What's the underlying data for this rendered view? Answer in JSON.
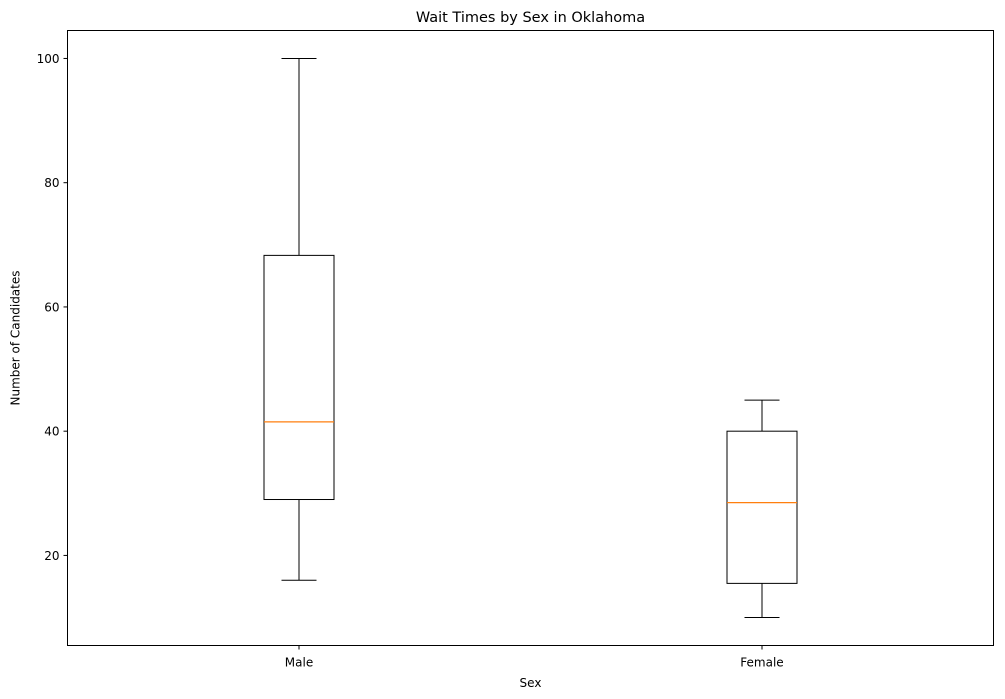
{
  "chart_data": {
    "type": "box",
    "title": "Wait Times by Sex in Oklahoma",
    "xlabel": "Sex",
    "ylabel": "Number of Candidates",
    "categories": [
      "Male",
      "Female"
    ],
    "boxes": [
      {
        "name": "Male",
        "whisker_low": 16,
        "q1": 29,
        "median": 41.5,
        "q3": 68.3,
        "whisker_high": 100
      },
      {
        "name": "Female",
        "whisker_low": 10,
        "q1": 15.5,
        "median": 28.5,
        "q3": 40,
        "whisker_high": 45
      }
    ],
    "ylim": [
      5.5,
      104.5
    ],
    "yticks": [
      20,
      40,
      60,
      80,
      100
    ],
    "grid": false,
    "colors": {
      "box": "#000000",
      "median": "#ff7f0e",
      "background": "#ffffff"
    }
  }
}
